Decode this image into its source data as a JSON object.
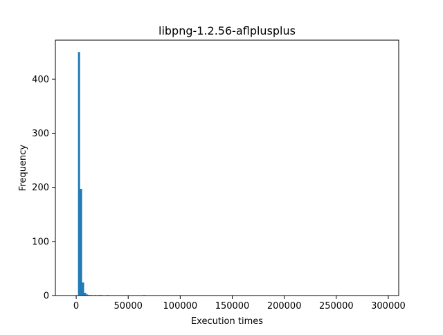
{
  "chart_data": {
    "type": "bar",
    "title": "libpng-1.2.56-aflplusplus",
    "xlabel": "Execution times",
    "ylabel": "Frequency",
    "xlim": [
      -20000,
      310000
    ],
    "ylim": [
      0,
      472
    ],
    "grid": false,
    "x_ticks": [
      0,
      50000,
      100000,
      150000,
      200000,
      250000,
      300000
    ],
    "x_tick_labels": [
      "0",
      "50000",
      "100000",
      "150000",
      "200000",
      "250000",
      "300000"
    ],
    "y_ticks": [
      0,
      100,
      200,
      300,
      400
    ],
    "y_tick_labels": [
      "0",
      "100",
      "200",
      "300",
      "400"
    ],
    "bar_color": "#1f77b4",
    "bin_width": 1960,
    "bins": [
      {
        "x": 1750,
        "value": 450
      },
      {
        "x": 3710,
        "value": 197
      },
      {
        "x": 5670,
        "value": 24
      },
      {
        "x": 7630,
        "value": 5
      },
      {
        "x": 9590,
        "value": 2
      },
      {
        "x": 11550,
        "value": 1
      },
      {
        "x": 13510,
        "value": 1
      },
      {
        "x": 17430,
        "value": 1
      },
      {
        "x": 21350,
        "value": 1
      },
      {
        "x": 23310,
        "value": 1
      },
      {
        "x": 29190,
        "value": 1
      },
      {
        "x": 64470,
        "value": 1
      }
    ]
  }
}
